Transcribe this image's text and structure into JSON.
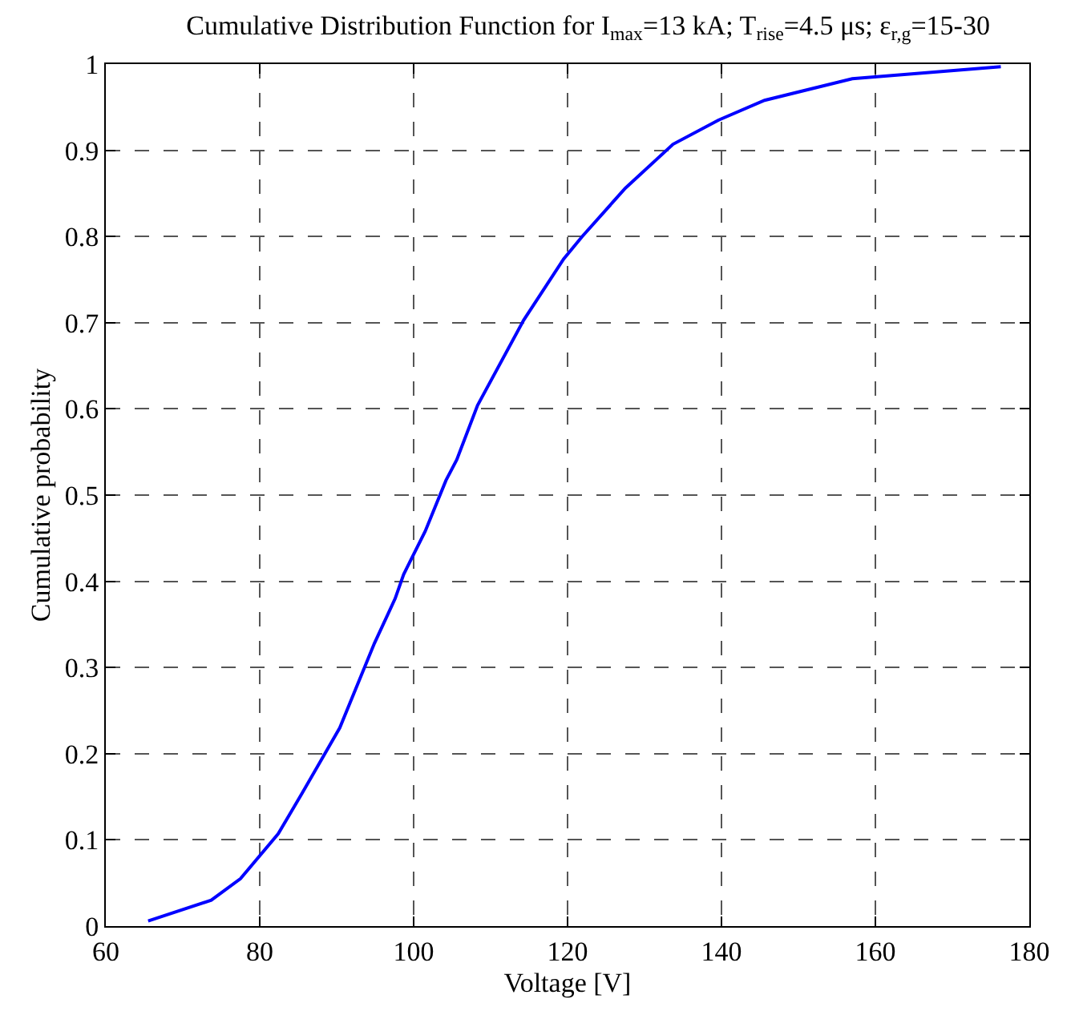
{
  "chart_data": {
    "type": "line",
    "title": "Cumulative Distribution Function for I$_{max}$=13 kA; T$_{rise}$=4.5 μs; ε$_{r,g}$=15-30",
    "xlabel": "Voltage [V]",
    "ylabel": "Cumulative probability",
    "x": [
      65.5,
      73.7,
      77.5,
      82.4,
      85.5,
      90.4,
      94.9,
      97.6,
      98.7,
      101.5,
      104.2,
      105.6,
      108.3,
      114.3,
      119.5,
      121.9,
      127.5,
      133.7,
      139.6,
      145.6,
      157,
      176.3
    ],
    "series": [
      {
        "color": "#0000ff",
        "values": [
          0.006,
          0.03,
          0.055,
          0.107,
          0.154,
          0.23,
          0.328,
          0.38,
          0.408,
          0.458,
          0.517,
          0.541,
          0.604,
          0.703,
          0.774,
          0.8,
          0.856,
          0.907,
          0.935,
          0.958,
          0.983,
          0.997
        ]
      }
    ],
    "xlim": [
      60,
      180
    ],
    "xticks": [
      60,
      80,
      100,
      120,
      140,
      160,
      180
    ],
    "ylim": [
      0,
      1
    ],
    "yticks": [
      0,
      0.1,
      0.2,
      0.3,
      0.4,
      0.5,
      0.6,
      0.7,
      0.8,
      0.9,
      1
    ],
    "grid": true,
    "marker": "none",
    "line_style": "solid"
  }
}
